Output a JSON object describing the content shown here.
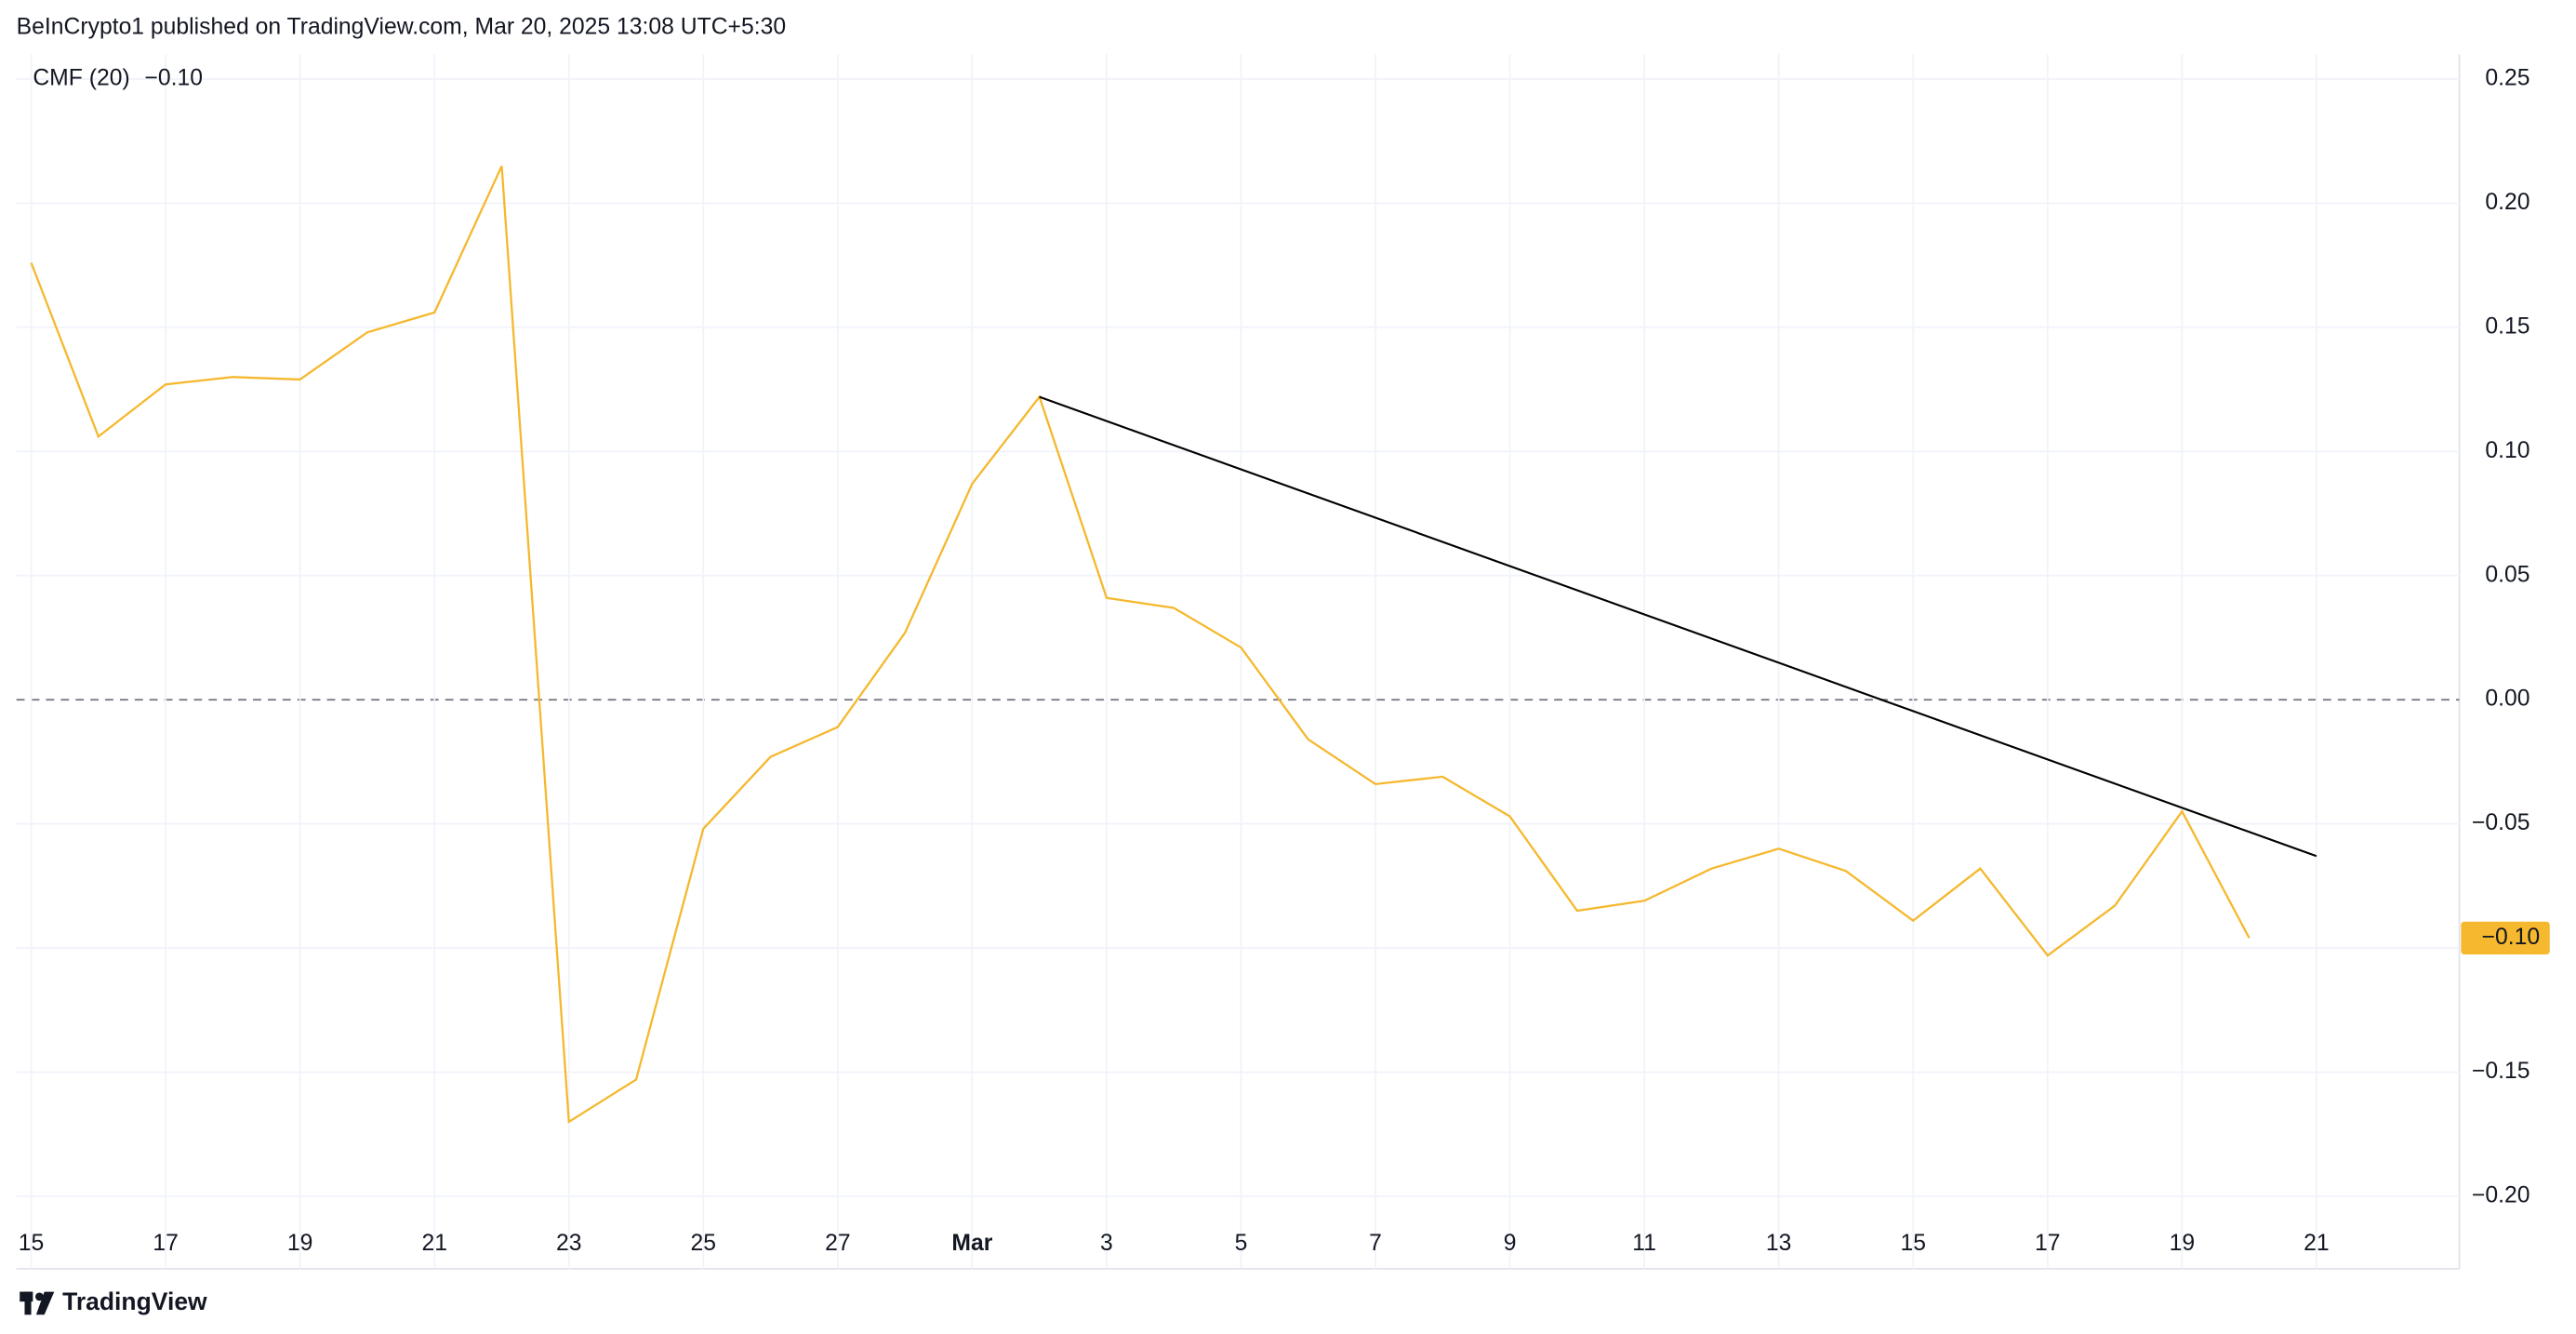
{
  "header": "BeInCrypto1 published on TradingView.com, Mar 20, 2025 13:08 UTC+5:30",
  "footer": "TradingView",
  "chart_data": {
    "type": "line",
    "indicator": "CMF (20)",
    "last_value_label": "−0.10",
    "categories": [
      "15",
      null,
      "17",
      null,
      "19",
      null,
      "21",
      null,
      "23",
      null,
      "25",
      null,
      "27",
      null,
      "Mar",
      null,
      "3",
      null,
      "5",
      null,
      "7",
      null,
      "9",
      null,
      "11",
      null,
      "13",
      null,
      "15",
      null,
      "17",
      null,
      "19",
      null,
      "21"
    ],
    "series": [
      {
        "name": "CMF (20)",
        "color": "#f5b82e",
        "values": [
          0.176,
          0.106,
          0.127,
          0.13,
          0.129,
          0.148,
          0.156,
          0.215,
          -0.17,
          -0.153,
          -0.052,
          -0.023,
          -0.011,
          0.027,
          0.087,
          0.122,
          0.041,
          0.037,
          0.021,
          -0.016,
          -0.034,
          -0.031,
          -0.047,
          -0.085,
          -0.081,
          -0.068,
          -0.06,
          -0.069,
          -0.089,
          -0.068,
          -0.103,
          -0.083,
          -0.045,
          -0.096,
          null
        ]
      }
    ],
    "trendline": {
      "color": "#000000",
      "x": [
        15,
        34
      ],
      "values": [
        0.122,
        -0.063
      ]
    },
    "ylim": [
      -0.21,
      0.26
    ],
    "yticks": [
      0.25,
      {
        "value": 0.2,
        "label": "0.20"
      },
      0.15,
      {
        "value": 0.1,
        "label": "0.10"
      },
      0.05,
      {
        "value": 0,
        "label": "0.00"
      },
      {
        "value": -0.05,
        "label": "−0.05"
      },
      {
        "value": -0.1,
        "label": "−0.10"
      },
      {
        "value": -0.15,
        "label": "−0.15"
      },
      {
        "value": -0.2,
        "label": "−0.20"
      }
    ],
    "grid": true
  }
}
